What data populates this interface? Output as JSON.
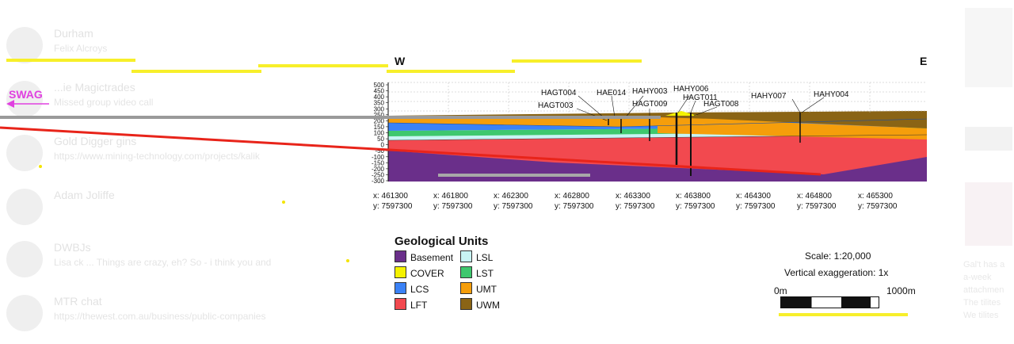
{
  "chats": [
    {
      "name": "Durham",
      "preview": "Felix Alcroys"
    },
    {
      "name": "...ie Magictrades",
      "preview": "Missed group video call"
    },
    {
      "name": "Gold Digger gins",
      "preview": "https://www.mining-technology.com/projects/kalik"
    },
    {
      "name": "Adam Joliffe",
      "preview": ""
    },
    {
      "name": "DWBJs",
      "preview": "Lisa ck ... Things are crazy, eh? So - i think you and"
    },
    {
      "name": "MTR chat",
      "preview": "https://thewest.com.au/business/public-companies"
    }
  ],
  "right_panel_text": [
    "Gal't has a",
    "a-week",
    "attachmen",
    "The tilites",
    "We tilites"
  ],
  "swag_label": "SWAG",
  "section": {
    "west_label": "W",
    "east_label": "E",
    "y_ticks": [
      "500",
      "450",
      "400",
      "350",
      "300",
      "250",
      "200",
      "150",
      "100",
      "50",
      "0",
      "-50",
      "-100",
      "-150",
      "-200",
      "-250",
      "-300"
    ],
    "drillholes": [
      "HAGT004",
      "HAGT003",
      "HAE014",
      "HAHY003",
      "HAGT009",
      "HAHY006",
      "HAGT011",
      "HAGT008",
      "HAHY007",
      "HAHY004"
    ],
    "coordinates": [
      {
        "x": "x: 461300",
        "y": "y: 7597300"
      },
      {
        "x": "x: 461800",
        "y": "y: 7597300"
      },
      {
        "x": "x: 462300",
        "y": "y: 7597300"
      },
      {
        "x": "x: 462800",
        "y": "y: 7597300"
      },
      {
        "x": "x: 463300",
        "y": "y: 7597300"
      },
      {
        "x": "x: 463800",
        "y": "y: 7597300"
      },
      {
        "x": "x: 464300",
        "y": "y: 7597300"
      },
      {
        "x": "x: 464800",
        "y": "y: 7597300"
      },
      {
        "x": "x: 465300",
        "y": "y: 7597300"
      }
    ]
  },
  "legend": {
    "title": "Geological Units",
    "units": [
      {
        "label": "Basement",
        "color": "#6a2f8a"
      },
      {
        "label": "LSL",
        "color": "#c8f4f4"
      },
      {
        "label": "COVER",
        "color": "#f5f200"
      },
      {
        "label": "LST",
        "color": "#3ec86e"
      },
      {
        "label": "LCS",
        "color": "#3b82f6"
      },
      {
        "label": "UMT",
        "color": "#f59e0b"
      },
      {
        "label": "LFT",
        "color": "#f2494f"
      },
      {
        "label": "UWM",
        "color": "#8a6415"
      }
    ]
  },
  "scale": {
    "ratio": "Scale: 1:20,000",
    "exaggeration": "Vertical exaggeration: 1x",
    "start": "0m",
    "end": "1000m"
  },
  "colors": {
    "highlight": "#f7ef2a",
    "red_line": "#e8241a",
    "grey_line": "#9a9a9a",
    "swag": "#e040e0"
  }
}
